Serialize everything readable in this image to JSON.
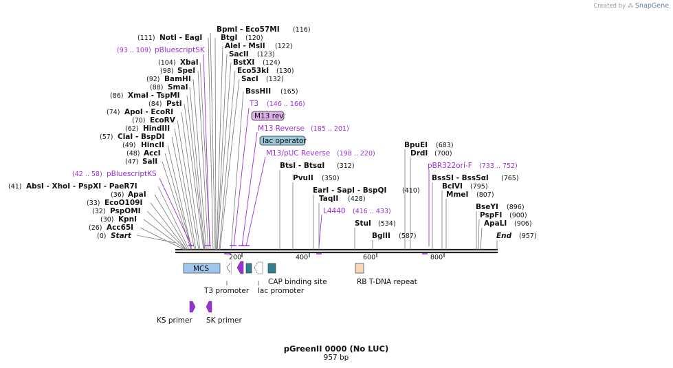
{
  "title": "pGreenII 0000 (No LUC)",
  "length_label": "957 bp",
  "brand": {
    "prefix": "Created by",
    "name": "SnapGene"
  },
  "colors": {
    "primer": "#9b30d9",
    "mcs": "#9fc6ec",
    "cap": "#2f7f8f",
    "rb": "#f6d8b4",
    "lac_operator": "#99c9d9",
    "m13rev": "#dcaee8"
  },
  "sites": [
    {
      "name": "BpmI - Eco57MI",
      "pos": 116,
      "label": "(116)"
    },
    {
      "name": "NotI - EagI",
      "pos": 111,
      "label": "(111)"
    },
    {
      "name": "BtgI",
      "pos": 120,
      "label": "(120)"
    },
    {
      "name": "AleI - MslI",
      "pos": 122,
      "label": "(122)"
    },
    {
      "name": "SacII",
      "pos": 123,
      "label": "(123)"
    },
    {
      "name": "XbaI",
      "pos": 104,
      "label": "(104)"
    },
    {
      "name": "BstXI",
      "pos": 124,
      "label": "(124)"
    },
    {
      "name": "SpeI",
      "pos": 98,
      "label": "(98)"
    },
    {
      "name": "Eco53kI",
      "pos": 130,
      "label": "(130)"
    },
    {
      "name": "BamHI",
      "pos": 92,
      "label": "(92)"
    },
    {
      "name": "SacI",
      "pos": 132,
      "label": "(132)"
    },
    {
      "name": "SmaI",
      "pos": 88,
      "label": "(88)"
    },
    {
      "name": "BssHII",
      "pos": 165,
      "label": "(165)"
    },
    {
      "name": "XmaI - TspMI",
      "pos": 86,
      "label": "(86)"
    },
    {
      "name": "PstI",
      "pos": 84,
      "label": "(84)"
    },
    {
      "name": "ApoI - EcoRI",
      "pos": 74,
      "label": "(74)"
    },
    {
      "name": "EcoRV",
      "pos": 70,
      "label": "(70)"
    },
    {
      "name": "HindIII",
      "pos": 62,
      "label": "(62)"
    },
    {
      "name": "ClaI - BspDI",
      "pos": 57,
      "label": "(57)"
    },
    {
      "name": "HincII",
      "pos": 49,
      "label": "(49)"
    },
    {
      "name": "AccI",
      "pos": 48,
      "label": "(48)"
    },
    {
      "name": "SalI",
      "pos": 47,
      "label": "(47)"
    },
    {
      "name": "AbsI - XhoI - PspXI - PaeR7I",
      "pos": 41,
      "label": "(41)"
    },
    {
      "name": "ApaI",
      "pos": 36,
      "label": "(36)"
    },
    {
      "name": "EcoO109I",
      "pos": 33,
      "label": "(33)"
    },
    {
      "name": "PspOMI",
      "pos": 32,
      "label": "(32)"
    },
    {
      "name": "KpnI",
      "pos": 30,
      "label": "(30)"
    },
    {
      "name": "Acc65I",
      "pos": 26,
      "label": "(26)"
    },
    {
      "name": "Start",
      "pos": 0,
      "label": "(0)"
    },
    {
      "name": "BtsI - BtsαI",
      "pos": 312,
      "label": "(312)"
    },
    {
      "name": "PvuII",
      "pos": 350,
      "label": "(350)"
    },
    {
      "name": "EarI - SapI - BspQI",
      "pos": 410,
      "label": "(410)"
    },
    {
      "name": "TaqII",
      "pos": 428,
      "label": "(428)"
    },
    {
      "name": "StuI",
      "pos": 534,
      "label": "(534)"
    },
    {
      "name": "BglII",
      "pos": 587,
      "label": "(587)"
    },
    {
      "name": "BpuEI",
      "pos": 683,
      "label": "(683)"
    },
    {
      "name": "DrdI",
      "pos": 700,
      "label": "(700)"
    },
    {
      "name": "BssSI - BssSαI",
      "pos": 765,
      "label": "(765)"
    },
    {
      "name": "BciVI",
      "pos": 795,
      "label": "(795)"
    },
    {
      "name": "MmeI",
      "pos": 807,
      "label": "(807)"
    },
    {
      "name": "BseYI",
      "pos": 896,
      "label": "(896)"
    },
    {
      "name": "PspFI",
      "pos": 900,
      "label": "(900)"
    },
    {
      "name": "ApaLI",
      "pos": 906,
      "label": "(906)"
    },
    {
      "name": "End",
      "pos": 957,
      "label": "(957)"
    }
  ],
  "primers": [
    {
      "name": "pBluescriptSK",
      "range": "(93 .. 109)"
    },
    {
      "name": "T3",
      "range": "(146 .. 166)"
    },
    {
      "name": "M13 rev",
      "range": ""
    },
    {
      "name": "M13 Reverse",
      "range": "(185 .. 201)"
    },
    {
      "name": "lac operator",
      "range": ""
    },
    {
      "name": "M13/pUC Reverse",
      "range": "(198 .. 220)"
    },
    {
      "name": "pBluescriptKS",
      "range": "(42 .. 58)"
    },
    {
      "name": "L4440",
      "range": "(416 .. 433)"
    },
    {
      "name": "pBR322ori-F",
      "range": "(733 .. 752)"
    }
  ],
  "ticks": [
    "200",
    "400",
    "600",
    "800"
  ],
  "features": {
    "mcs": "MCS",
    "t3_promoter": "T3 promoter",
    "cap_site": "CAP binding site",
    "lac_promoter": "lac promoter",
    "rb_repeat": "RB T-DNA repeat",
    "ks_primer": "KS primer",
    "sk_primer": "SK primer"
  }
}
